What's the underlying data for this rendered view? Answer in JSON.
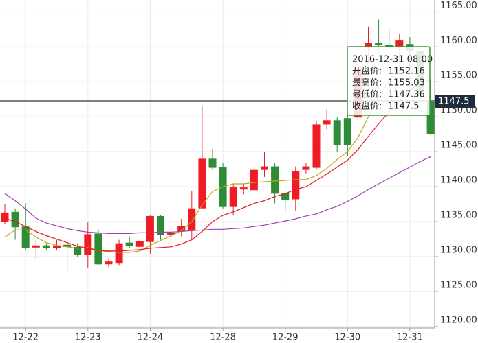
{
  "chart_data": {
    "type": "candlestick",
    "categories": [
      null,
      null,
      "12-22",
      null,
      null,
      null,
      null,
      null,
      "12-23",
      null,
      null,
      null,
      null,
      null,
      "12-24",
      null,
      null,
      null,
      null,
      null,
      null,
      "12-28",
      null,
      null,
      null,
      null,
      null,
      "12-29",
      null,
      null,
      null,
      null,
      null,
      "12-30",
      null,
      null,
      null,
      null,
      null,
      "12-31",
      null,
      null
    ],
    "open": [
      1135.0,
      1136.4,
      1134.3,
      1131.3,
      1131.6,
      1131.2,
      1131.7,
      1131.4,
      1130.2,
      1133.3,
      1128.9,
      1129.0,
      1132.0,
      1131.4,
      1132.1,
      1135.8,
      1133.1,
      1133.6,
      1133.7,
      1136.9,
      1144.0,
      1142.8,
      1137.1,
      1139.6,
      1139.5,
      1142.4,
      1142.9,
      1139.1,
      1138.2,
      1142.4,
      1142.7,
      1148.9,
      1149.5,
      1149.8,
      1149.9,
      1159.9,
      1160.6,
      1160.3,
      1159.9,
      1160.4,
      1159.4,
      1152.16
    ],
    "high": [
      1137.5,
      1136.9,
      1137.6,
      1132.4,
      1131.9,
      1132.4,
      1132.4,
      1131.9,
      1134.9,
      1133.9,
      1129.8,
      1132.4,
      1132.9,
      1132.4,
      1135.9,
      1135.9,
      1134.4,
      1135.4,
      1139.4,
      1151.6,
      1145.4,
      1143.4,
      1140.4,
      1140.4,
      1142.9,
      1144.9,
      1143.4,
      1139.4,
      1142.9,
      1143.4,
      1149.4,
      1150.9,
      1149.9,
      1150.4,
      1158.4,
      1162.9,
      1163.9,
      1162.4,
      1161.9,
      1161.4,
      1159.9,
      1155.03
    ],
    "low": [
      1134.6,
      1132.4,
      1130.9,
      1129.7,
      1130.9,
      1130.9,
      1127.8,
      1129.9,
      1128.4,
      1128.7,
      1128.5,
      1128.7,
      1131.2,
      1131.2,
      1130.4,
      1132.4,
      1130.9,
      1132.9,
      1132.4,
      1136.9,
      1142.4,
      1136.9,
      1135.9,
      1138.9,
      1139.4,
      1141.4,
      1137.6,
      1136.4,
      1136.6,
      1141.9,
      1142.4,
      1148.2,
      1144.9,
      1144.4,
      1149.4,
      1157.9,
      1158.9,
      1156.9,
      1155.9,
      1152.9,
      1151.9,
      1147.36
    ],
    "close": [
      1136.3,
      1134.2,
      1131.2,
      1131.6,
      1131.2,
      1131.6,
      1131.4,
      1130.2,
      1133.2,
      1128.9,
      1129.3,
      1131.9,
      1131.5,
      1132.2,
      1135.8,
      1133.1,
      1133.4,
      1134.4,
      1136.9,
      1144.0,
      1142.7,
      1137.1,
      1140.0,
      1139.9,
      1142.4,
      1142.9,
      1139.0,
      1138.1,
      1142.2,
      1142.9,
      1148.9,
      1149.5,
      1145.9,
      1145.9,
      1156.9,
      1160.6,
      1160.3,
      1159.9,
      1160.9,
      1159.4,
      1153.1,
      1147.5
    ],
    "up_color": "#ee1c25",
    "down_color": "#2e8b36",
    "lines": [
      {
        "color": "#b8aa10",
        "values": [
          1132.8,
          1133.8,
          1133.8,
          1132.8,
          1132.0,
          1131.6,
          1131.4,
          1131.2,
          1131.3,
          1130.9,
          1130.7,
          1130.6,
          1130.6,
          1130.8,
          1131.6,
          1132.3,
          1133.0,
          1133.7,
          1135.0,
          1137.4,
          1139.3,
          1140.0,
          1140.4,
          1140.4,
          1140.6,
          1140.7,
          1140.8,
          1140.9,
          1141.0,
          1141.0,
          1141.6,
          1142.6,
          1143.9,
          1145.0,
          1147.0,
          1150.0,
          1152.8,
          1155.0,
          1156.5,
          1157.3,
          1156.8,
          1155.5
        ]
      },
      {
        "color": "#e8141e",
        "values": [
          1135.5,
          1135.0,
          1134.3,
          1133.6,
          1133.0,
          1132.5,
          1132.0,
          1131.5,
          1131.2,
          1130.9,
          1130.8,
          1130.8,
          1130.9,
          1131.0,
          1131.2,
          1131.3,
          1131.4,
          1131.8,
          1132.4,
          1133.6,
          1135.0,
          1135.9,
          1136.4,
          1137.0,
          1137.6,
          1138.0,
          1138.6,
          1139.0,
          1139.6,
          1140.0,
          1140.9,
          1141.8,
          1142.8,
          1143.8,
          1145.3,
          1147.2,
          1149.0,
          1150.7,
          1152.3,
          1153.8,
          1154.8,
          1155.2
        ]
      },
      {
        "color": "#a040b0",
        "values": [
          1139.0,
          1138.0,
          1136.8,
          1135.5,
          1134.8,
          1134.4,
          1134.0,
          1133.7,
          1133.5,
          1133.4,
          1133.3,
          1133.3,
          1133.3,
          1133.4,
          1133.4,
          1133.5,
          1133.5,
          1133.6,
          1133.7,
          1133.8,
          1133.9,
          1133.9,
          1134.0,
          1134.1,
          1134.3,
          1134.5,
          1134.8,
          1135.1,
          1135.4,
          1135.8,
          1136.1,
          1136.7,
          1137.2,
          1137.9,
          1138.7,
          1139.6,
          1140.4,
          1141.2,
          1142.0,
          1142.8,
          1143.6,
          1144.3
        ]
      }
    ],
    "ylim": [
      1119.8,
      1166.7
    ],
    "yticks": [
      {
        "value": 1165,
        "label": "1165.00"
      },
      {
        "value": 1160,
        "label": "1160.00"
      },
      {
        "value": 1155,
        "label": "1155.00"
      },
      {
        "value": 1150,
        "label": "1150.00"
      },
      {
        "value": 1145,
        "label": "1145.00"
      },
      {
        "value": 1140,
        "label": "1140.00"
      },
      {
        "value": 1135,
        "label": "1135.00"
      },
      {
        "value": 1130,
        "label": "1130.00"
      },
      {
        "value": 1125,
        "label": "1125.00"
      },
      {
        "value": 1120,
        "label": "1120.00"
      }
    ],
    "grid": true,
    "tooltip": {
      "title": "2016-12-31 08:00",
      "labels": [
        "开盘价:",
        "最高价:",
        "最低价:",
        "收盘价:"
      ]
    }
  }
}
